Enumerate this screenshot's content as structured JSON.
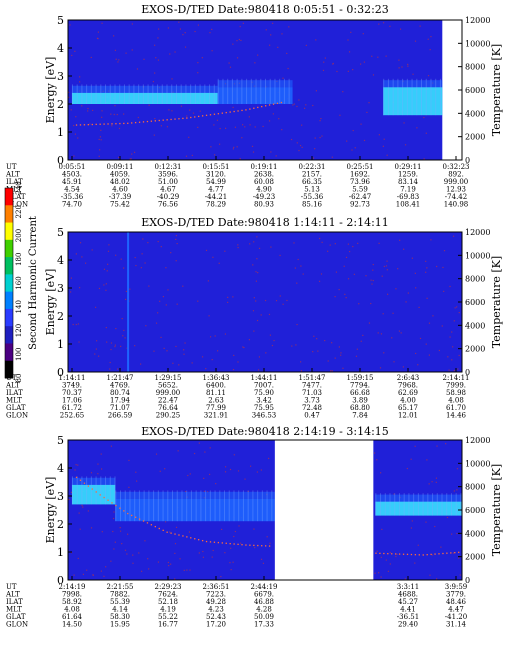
{
  "chart_data": [
    {
      "type": "heatmap",
      "title": "EXOS-D/TED   Date:980418  0:05:51 - 0:32:23",
      "ylabel": "Energy [eV]",
      "ylabel_right": "Temperature [K]",
      "ylim": [
        0,
        5
      ],
      "yticks": [
        "0",
        "1",
        "2",
        "3",
        "4",
        "5"
      ],
      "ylim_right": [
        0,
        12000
      ],
      "yticks_right": [
        "0",
        "2000",
        "4000",
        "6000",
        "8000",
        "10000",
        "12000"
      ],
      "time_ticks": [
        "0:05:51",
        "0:09:11",
        "0:12:31",
        "0:15:51",
        "0:19:11",
        "0:22:31",
        "0:25:51",
        "0:29:11",
        "0:32:23"
      ],
      "rows": [
        {
          "label": "UT",
          "values": [
            "0:05:51",
            "0:09:11",
            "0:12:31",
            "0:15:51",
            "0:19:11",
            "0:22:31",
            "0:25:51",
            "0:29:11",
            "0:32:23"
          ]
        },
        {
          "label": "ALT",
          "values": [
            "4503.",
            "4059.",
            "3596.",
            "3120.",
            "2638.",
            "2157.",
            "1692.",
            "1259.",
            "892."
          ]
        },
        {
          "label": "ILAT",
          "values": [
            "45.91",
            "48.02",
            "51.00",
            "54.99",
            "60.08",
            "66.35",
            "73.96",
            "83.14",
            "999.00"
          ]
        },
        {
          "label": "MLT",
          "values": [
            "4.54",
            "4.60",
            "4.67",
            "4.77",
            "4.90",
            "5.13",
            "5.59",
            "7.19",
            "12.93"
          ]
        },
        {
          "label": "GLAT",
          "values": [
            "-35.36",
            "-37.39",
            "-40.29",
            "-44.21",
            "-49.23",
            "-55.36",
            "-62.47",
            "-69.83",
            "-74.42"
          ]
        },
        {
          "label": "GLON",
          "values": [
            "74.70",
            "75.42",
            "76.56",
            "78.29",
            "80.93",
            "85.16",
            "92.73",
            "108.41",
            "140.98"
          ]
        }
      ],
      "data_columns": [
        0,
        0.95
      ],
      "gaps": [],
      "bands": [
        {
          "from": 0.01,
          "to": 0.38,
          "e_low": 2.0,
          "e_high": 2.4,
          "intensity": "cyan"
        },
        {
          "from": 0.38,
          "to": 0.57,
          "e_low": 2.0,
          "e_high": 2.6,
          "intensity": "blue"
        },
        {
          "from": 0.8,
          "to": 0.95,
          "e_low": 1.6,
          "e_high": 2.6,
          "intensity": "cyan"
        }
      ],
      "temperature_trace": [
        {
          "x": 0.02,
          "t": 3000
        },
        {
          "x": 0.15,
          "t": 3150
        },
        {
          "x": 0.3,
          "t": 3600
        },
        {
          "x": 0.45,
          "t": 4300
        },
        {
          "x": 0.55,
          "t": 5000
        }
      ]
    },
    {
      "type": "heatmap",
      "title": "EXOS-D/TED   Date:980418  1:14:11 - 2:14:11",
      "ylabel": "Energy [eV]",
      "ylabel_right": "Temperature [K]",
      "ylim": [
        0,
        5
      ],
      "yticks": [
        "0",
        "1",
        "2",
        "3",
        "4",
        "5"
      ],
      "ylim_right": [
        0,
        12000
      ],
      "yticks_right": [
        "0",
        "2000",
        "4000",
        "6000",
        "8000",
        "10000",
        "12000"
      ],
      "time_ticks": [
        "1:14:11",
        "1:21:47",
        "1:29:15",
        "1:36:43",
        "1:44:11",
        "1:51:47",
        "1:59:15",
        "2:6:43",
        "2:14:11"
      ],
      "rows": [
        {
          "label": "UT",
          "values": [
            "1:14:11",
            "1:21:47",
            "1:29:15",
            "1:36:43",
            "1:44:11",
            "1:51:47",
            "1:59:15",
            "2:6:43",
            "2:14:11"
          ]
        },
        {
          "label": "ALT",
          "values": [
            "3749.",
            "4769.",
            "5652.",
            "6400.",
            "7007.",
            "7477.",
            "7794.",
            "7968.",
            "7999."
          ]
        },
        {
          "label": "ILAT",
          "values": [
            "70.37",
            "80.74",
            "999.00",
            "81.11",
            "75.90",
            "71.03",
            "66.68",
            "62.69",
            "58.98"
          ]
        },
        {
          "label": "MLT",
          "values": [
            "17.06",
            "17.94",
            "22.47",
            "2.63",
            "3.42",
            "3.73",
            "3.89",
            "4.00",
            "4.08"
          ]
        },
        {
          "label": "GLAT",
          "values": [
            "61.72",
            "71.07",
            "76.64",
            "77.99",
            "75.95",
            "72.48",
            "68.80",
            "65.17",
            "61.70"
          ]
        },
        {
          "label": "GLON",
          "values": [
            "252.65",
            "266.59",
            "290.25",
            "321.91",
            "346.53",
            "0.47",
            "7.84",
            "12.01",
            "14.46"
          ]
        }
      ],
      "data_columns": [
        0,
        1
      ],
      "gaps": [],
      "bands": [],
      "spikes": [
        0.15
      ],
      "temperature_trace": []
    },
    {
      "type": "heatmap",
      "title": "EXOS-D/TED   Date:980418  2:14:19 - 3:14:15",
      "ylabel": "Energy [eV]",
      "ylabel_right": "Temperature [K]",
      "ylim": [
        0,
        5
      ],
      "yticks": [
        "0",
        "1",
        "2",
        "3",
        "4",
        "5"
      ],
      "ylim_right": [
        0,
        12000
      ],
      "yticks_right": [
        "0",
        "2000",
        "4000",
        "6000",
        "8000",
        "10000",
        "12000"
      ],
      "time_ticks": [
        "2:14:19",
        "2:21:55",
        "2:29:23",
        "2:36:51",
        "2:44:19",
        "",
        "",
        "3:3:11",
        "3:9:59"
      ],
      "rows": [
        {
          "label": "UT",
          "values": [
            "2:14:19",
            "2:21:55",
            "2:29:23",
            "2:36:51",
            "2:44:19",
            "",
            "",
            "3:3:11",
            "3:9:59"
          ]
        },
        {
          "label": "ALT",
          "values": [
            "7998.",
            "7882.",
            "7624.",
            "7223.",
            "6679.",
            "",
            "",
            "4688.",
            "3779."
          ]
        },
        {
          "label": "ILAT",
          "values": [
            "58.92",
            "55.39",
            "52.18",
            "49.28",
            "46.88",
            "",
            "",
            "45.27",
            "48.46"
          ]
        },
        {
          "label": "MLT",
          "values": [
            "4.08",
            "4.14",
            "4.19",
            "4.23",
            "4.28",
            "",
            "",
            "4.41",
            "4.47"
          ]
        },
        {
          "label": "GLAT",
          "values": [
            "61.64",
            "58.30",
            "55.22",
            "52.43",
            "50.09",
            "",
            "",
            "-36.51",
            "-41.20"
          ]
        },
        {
          "label": "GLON",
          "values": [
            "14.50",
            "15.95",
            "16.77",
            "17.20",
            "17.33",
            "",
            "",
            "29.40",
            "31.14"
          ]
        }
      ],
      "data_columns": [
        0,
        1
      ],
      "gaps": [
        [
          0.525,
          0.775
        ]
      ],
      "bands": [
        {
          "from": 0.01,
          "to": 0.12,
          "e_low": 2.7,
          "e_high": 3.4,
          "intensity": "cyan"
        },
        {
          "from": 0.12,
          "to": 0.525,
          "e_low": 2.1,
          "e_high": 2.9,
          "intensity": "blue"
        },
        {
          "from": 0.78,
          "to": 1.0,
          "e_low": 2.3,
          "e_high": 2.8,
          "intensity": "cyan"
        }
      ],
      "temperature_trace": [
        {
          "x": 0.02,
          "t": 8800
        },
        {
          "x": 0.08,
          "t": 7300
        },
        {
          "x": 0.15,
          "t": 5700
        },
        {
          "x": 0.25,
          "t": 4100
        },
        {
          "x": 0.35,
          "t": 3300
        },
        {
          "x": 0.45,
          "t": 3000
        },
        {
          "x": 0.52,
          "t": 2900
        },
        {
          "x": 0.78,
          "t": 2300
        },
        {
          "x": 0.9,
          "t": 2150
        },
        {
          "x": 1.0,
          "t": 2400
        }
      ]
    }
  ],
  "colorbar": {
    "label": "Second Harmonic Current",
    "ticks": [
      "80",
      "100",
      "120",
      "140",
      "160",
      "180",
      "200",
      "220",
      "240"
    ],
    "colors": [
      "#000000",
      "#4b0082",
      "#1f1fbf",
      "#2a3cff",
      "#0080ff",
      "#00d0d0",
      "#00c060",
      "#40d000",
      "#ffff00",
      "#ff8000",
      "#ff0000"
    ]
  },
  "colors": {
    "background": "#2020d8",
    "cyan": "#38e0ff",
    "blue": "#1e64ff",
    "trace": "#ff6a3a",
    "noise": "#9e3060"
  }
}
